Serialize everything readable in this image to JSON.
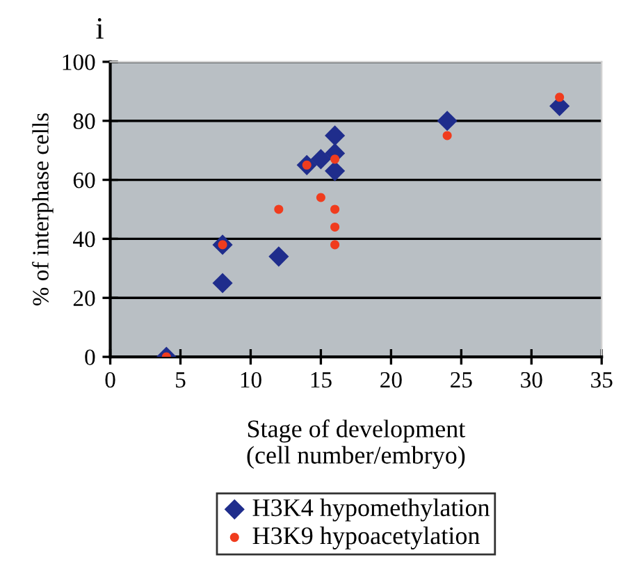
{
  "chart_data": {
    "type": "scatter",
    "title": "i",
    "xlabel": "Stage of development\n(cell number/embryo)",
    "ylabel": "% of interphase cells",
    "xlim": [
      0,
      35
    ],
    "xticks": [
      0,
      5,
      10,
      15,
      20,
      25,
      30,
      35
    ],
    "ylim": [
      0,
      100
    ],
    "yticks": [
      0,
      20,
      40,
      60,
      80,
      100
    ],
    "grid": "y",
    "legend": "bottom",
    "series": [
      {
        "name": "H3K4 hypomethylation",
        "color": "#1f2d8c",
        "marker": "diamond",
        "x": [
          4,
          8,
          8,
          12,
          14,
          15,
          16,
          16,
          16,
          24,
          32
        ],
        "values": [
          0,
          38,
          25,
          34,
          65,
          67,
          75,
          69,
          63,
          80,
          85
        ]
      },
      {
        "name": "H3K9 hypoacetylation",
        "color": "#f03c1e",
        "marker": "circle",
        "x": [
          4,
          8,
          12,
          14,
          15,
          16,
          16,
          16,
          16,
          24,
          32
        ],
        "values": [
          0,
          38,
          50,
          65,
          54,
          67,
          50,
          44,
          38,
          75,
          88
        ]
      }
    ]
  }
}
